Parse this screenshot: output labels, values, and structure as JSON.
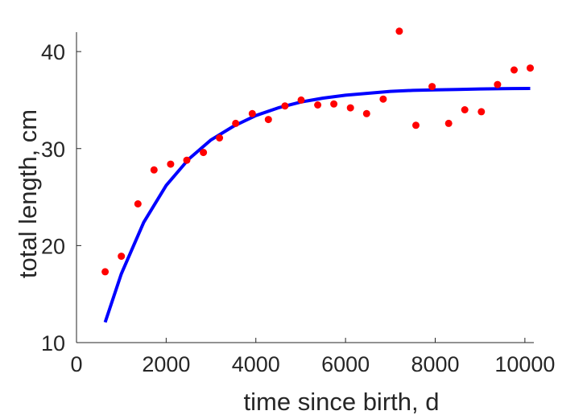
{
  "chart_data": {
    "type": "scatter",
    "title": "",
    "xlabel": "time since birth, d",
    "ylabel": "total length, cm",
    "xlim": [
      0,
      10200
    ],
    "ylim": [
      10,
      42
    ],
    "xticks": [
      0,
      2000,
      4000,
      6000,
      8000,
      10000
    ],
    "yticks": [
      10,
      20,
      30,
      40
    ],
    "grid": false,
    "legend": "none",
    "series": [
      {
        "kind": "points",
        "color": "#ff0000",
        "marker": "filled-circle",
        "x": [
          640,
          1000,
          1370,
          1730,
          2100,
          2460,
          2830,
          3190,
          3550,
          3920,
          4280,
          4650,
          5010,
          5380,
          5740,
          6110,
          6470,
          6840,
          7200,
          7570,
          7930,
          8300,
          8660,
          9030,
          9390,
          9760,
          10120
        ],
        "y": [
          17.3,
          18.9,
          24.3,
          27.8,
          28.4,
          28.8,
          29.6,
          31.1,
          32.6,
          33.6,
          33.0,
          34.4,
          35.0,
          34.5,
          34.6,
          34.2,
          33.6,
          35.1,
          42.1,
          32.4,
          36.4,
          32.6,
          34.0,
          33.8,
          36.6,
          38.1,
          38.3
        ]
      },
      {
        "kind": "curve",
        "color": "#0000ff",
        "x": [
          640,
          1000,
          1500,
          2000,
          2500,
          3000,
          3500,
          4000,
          4500,
          5000,
          5500,
          6000,
          6500,
          7000,
          7500,
          8000,
          8500,
          9000,
          9500,
          10120
        ],
        "y": [
          12.1,
          17.1,
          22.4,
          26.2,
          28.9,
          30.9,
          32.3,
          33.4,
          34.2,
          34.8,
          35.2,
          35.5,
          35.7,
          35.9,
          36.0,
          36.05,
          36.1,
          36.15,
          36.18,
          36.2
        ]
      }
    ]
  }
}
